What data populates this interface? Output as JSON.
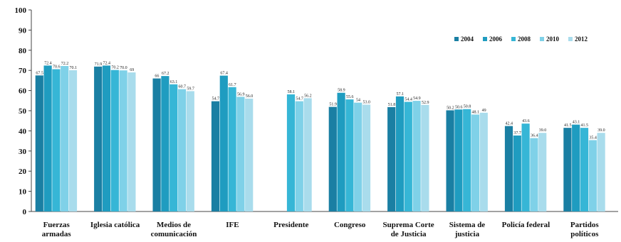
{
  "chart_data": {
    "type": "bar",
    "title": "",
    "xlabel": "",
    "ylabel": "",
    "ylim": [
      0,
      100
    ],
    "yticks": [
      0,
      10,
      20,
      30,
      40,
      50,
      60,
      70,
      80,
      90,
      100
    ],
    "grid": false,
    "legend_position": "top-right",
    "categories": [
      [
        "Fuerzas",
        "armadas"
      ],
      [
        "Iglesia católica"
      ],
      [
        "Medios de",
        "comunicación"
      ],
      [
        "IFE"
      ],
      [
        "Presidente"
      ],
      [
        "Congreso"
      ],
      [
        "Suprema Corte",
        "de Justicia"
      ],
      [
        "Sistema de",
        "justicia"
      ],
      [
        "Policía federal"
      ],
      [
        "Partidos",
        "políticos"
      ]
    ],
    "series": [
      {
        "name": "2004",
        "color": "#1a7fa3",
        "values": [
          67.5,
          71.9,
          66.0,
          54.7,
          null,
          51.9,
          51.8,
          50.2,
          42.4,
          41.5
        ],
        "labels": [
          "67.5",
          "71.9",
          "66",
          "54.7",
          "",
          "51.9",
          "51.8",
          "50.2",
          "42.4",
          "41.5"
        ]
      },
      {
        "name": "2006",
        "color": "#1f9cc0",
        "values": [
          72.4,
          72.4,
          67.2,
          67.4,
          null,
          58.9,
          57.1,
          50.6,
          37.7,
          43.1
        ],
        "labels": [
          "72.4",
          "72.4",
          "67.2",
          "67.4",
          "",
          "58.9",
          "57.1",
          "50.6",
          "37.7",
          "43.1"
        ]
      },
      {
        "name": "2008",
        "color": "#36b6d6",
        "values": [
          70.6,
          70.2,
          63.1,
          61.7,
          58.1,
          55.6,
          54.4,
          50.8,
          43.6,
          41.5
        ],
        "labels": [
          "70.6",
          "70.2",
          "63.1",
          "61.7",
          "58.1",
          "55.6",
          "54.4",
          "50.8",
          "43.6",
          "41.5"
        ]
      },
      {
        "name": "2010",
        "color": "#7fd1e8",
        "values": [
          72.2,
          70.0,
          60.7,
          56.9,
          54.7,
          54.0,
          54.9,
          48.1,
          36.4,
          35.4
        ],
        "labels": [
          "72.2",
          "70.0",
          "60.7",
          "56.9",
          "54.7",
          "54",
          "54.9",
          "48.1",
          "36.4",
          "35.4"
        ]
      },
      {
        "name": "2012",
        "color": "#a9dcec",
        "values": [
          70.1,
          69.0,
          59.7,
          56.0,
          56.2,
          53.0,
          52.9,
          49.0,
          39.0,
          39.0
        ],
        "labels": [
          "70.1",
          "69",
          "59.7",
          "56.0",
          "56.2",
          "53.0",
          "52.9",
          "49",
          "39.0",
          "39.0"
        ]
      }
    ]
  }
}
